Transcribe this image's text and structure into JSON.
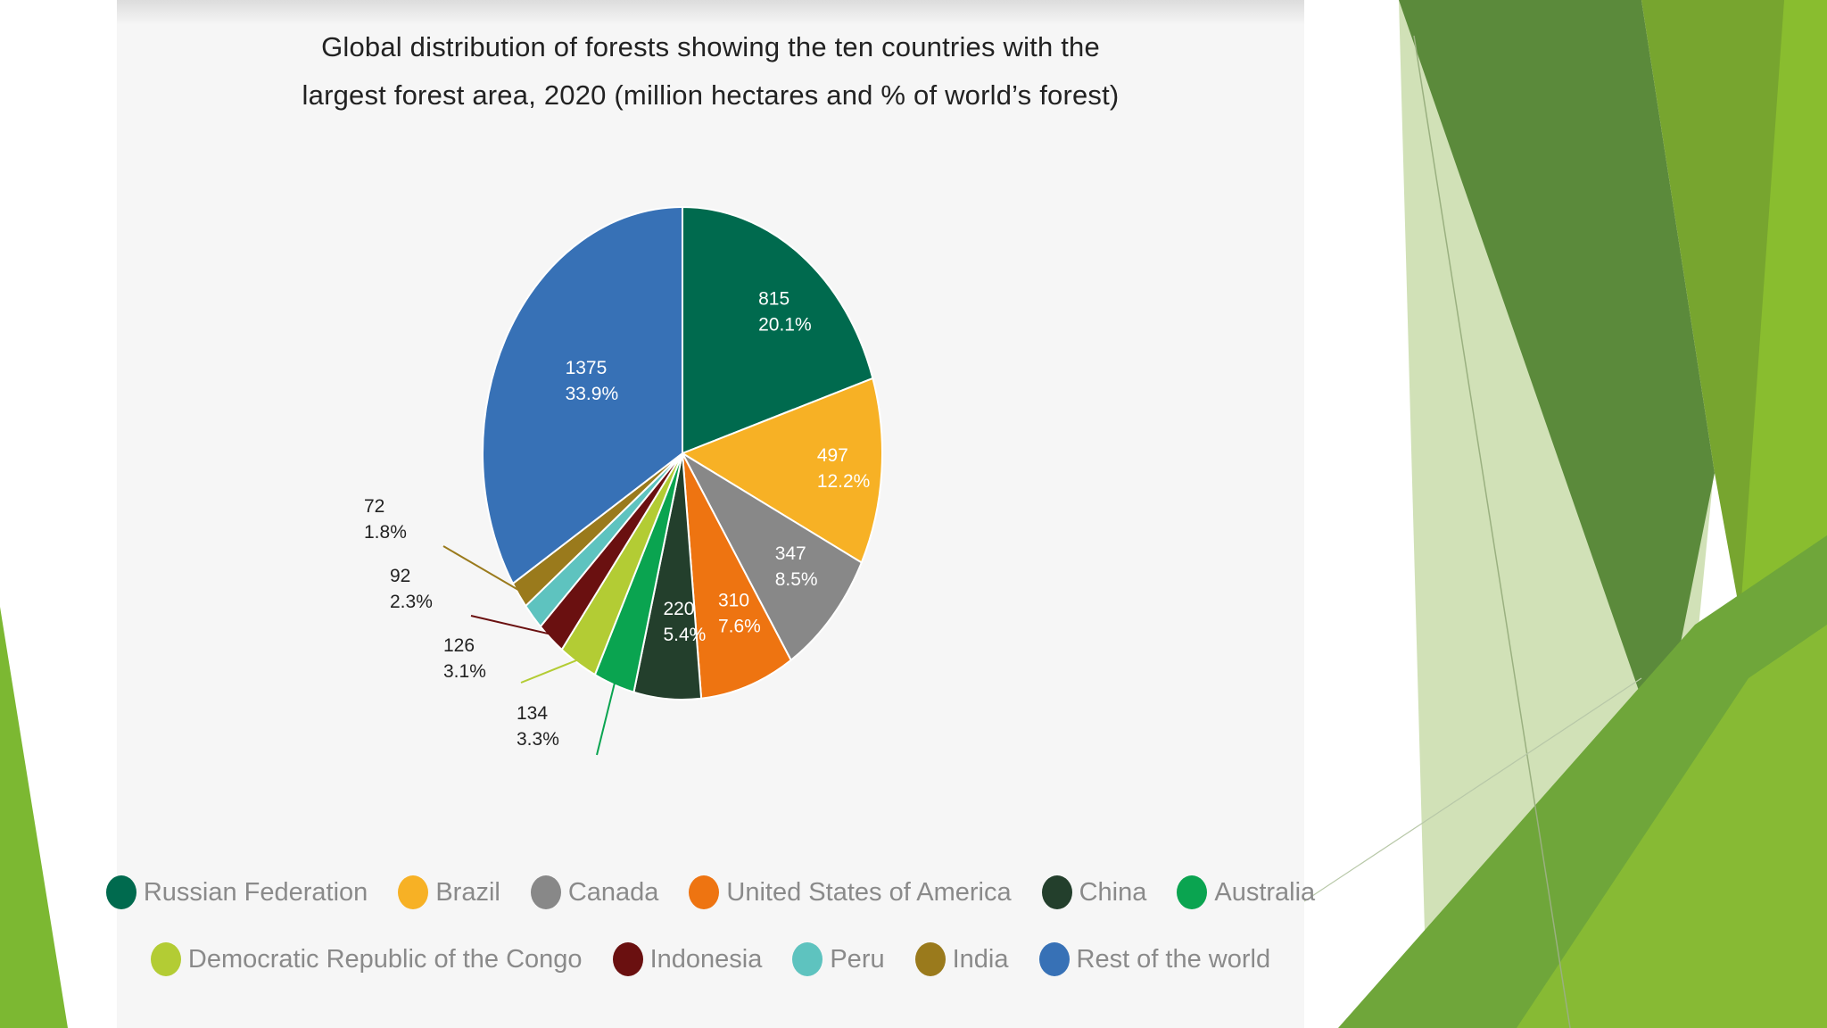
{
  "chart_data": {
    "type": "pie",
    "title": "Global distribution of forests showing the ten countries with the largest forest area, 2020 (million hectares and % of world’s forest)",
    "title_lines": [
      "Global distribution of forests showing the ten countries with the",
      "largest forest area, 2020 (million hectares and % of world’s forest)"
    ],
    "slices": [
      {
        "name": "Russian Federation",
        "value": 815,
        "value_label": "815",
        "percent_label": "20.1%",
        "color": "#006a4e",
        "label_inside": true
      },
      {
        "name": "Brazil",
        "value": 497,
        "value_label": "497",
        "percent_label": "12.2%",
        "color": "#f7b125",
        "label_inside": true
      },
      {
        "name": "Canada",
        "value": 347,
        "value_label": "347",
        "percent_label": "8.5%",
        "color": "#888888",
        "label_inside": true
      },
      {
        "name": "United States of America",
        "value": 310,
        "value_label": "310",
        "percent_label": "7.6%",
        "color": "#ee7411",
        "label_inside": true
      },
      {
        "name": "China",
        "value": 220,
        "value_label": "220",
        "percent_label": "5.4%",
        "color": "#233f2c",
        "label_inside": true
      },
      {
        "name": "Australia",
        "value": 134,
        "value_label": "134",
        "percent_label": "3.3%",
        "color": "#0aa450",
        "label_inside": false
      },
      {
        "name": "Democratic Republic of the Congo",
        "value": 126,
        "value_label": "126",
        "percent_label": "3.1%",
        "color": "#b3cc34",
        "label_inside": false
      },
      {
        "name": "Indonesia",
        "value": 92,
        "value_label": "92",
        "percent_label": "2.3%",
        "color": "#6a1010",
        "label_inside": false
      },
      {
        "name": "Peru",
        "value": 72,
        "value_label": "",
        "percent_label": "",
        "color": "#5ec3bf",
        "label_inside": false
      },
      {
        "name": "India",
        "value": 72,
        "value_label": "72",
        "percent_label": "1.8%",
        "color": "#9a7a1c",
        "label_inside": false
      },
      {
        "name": "Rest of the world",
        "value": 1375,
        "value_label": "1375",
        "percent_label": "33.9%",
        "color": "#3771b6",
        "label_inside": true
      }
    ],
    "legend_placement": "bottom",
    "legend_rows": [
      [
        "Russian Federation",
        "Brazil",
        "Canada",
        "United States of America",
        "China",
        "Australia"
      ],
      [
        "Democratic Republic of the Congo",
        "Indonesia",
        "Peru",
        "India",
        "Rest of the world"
      ]
    ]
  },
  "slide_colors": {
    "green_dark": "#5a8b3c",
    "green_mid": "#6ea232",
    "green_light": "#8cbf35",
    "green_pale": "#c8dca8"
  }
}
